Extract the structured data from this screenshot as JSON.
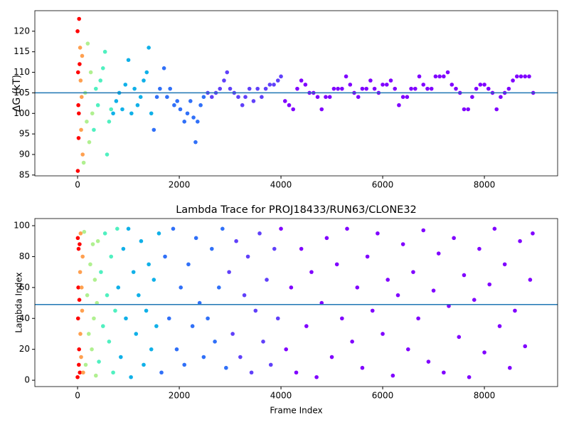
{
  "chart_data": [
    {
      "type": "scatter",
      "ylabel": "ΔG (kT)",
      "xlim": [
        -840,
        9440
      ],
      "ylim": [
        84.8,
        125
      ],
      "xticks": [
        0,
        2000,
        4000,
        6000,
        8000
      ],
      "yticks": [
        85,
        90,
        95,
        100,
        105,
        110,
        115,
        120
      ],
      "hline": 105,
      "hline_color": "#1f77b4",
      "series": [
        {
          "color": "#ff0000",
          "x": [
            0,
            5,
            10,
            15,
            20,
            25,
            30,
            40
          ],
          "y": [
            120,
            86,
            110,
            102,
            94,
            100,
            123,
            112
          ]
        },
        {
          "color": "#ffa050",
          "x": [
            50,
            60,
            70,
            80,
            90,
            100
          ],
          "y": [
            116,
            108,
            96,
            104,
            114,
            90
          ]
        },
        {
          "color": "#b0f090",
          "x": [
            120,
            150,
            180,
            200,
            230,
            260,
            290
          ],
          "y": [
            88,
            105,
            98,
            117,
            93,
            110,
            100
          ]
        },
        {
          "color": "#50f0c0",
          "x": [
            320,
            360,
            400,
            450,
            500,
            540,
            580,
            620,
            660
          ],
          "y": [
            96,
            106,
            102,
            108,
            111,
            115,
            90,
            98,
            101
          ]
        },
        {
          "color": "#10b0e8",
          "x": [
            700,
            760,
            820,
            880,
            940,
            1000,
            1060,
            1120,
            1180,
            1240,
            1300,
            1360,
            1400,
            1450
          ],
          "y": [
            100,
            103,
            105,
            101,
            107,
            113,
            100,
            106,
            102,
            104,
            108,
            110,
            116,
            100
          ]
        },
        {
          "color": "#3070f8",
          "x": [
            1500,
            1560,
            1620,
            1700,
            1760,
            1820,
            1900,
            1960,
            2020,
            2100,
            2160,
            2220,
            2280,
            2320,
            2360,
            2420,
            2480
          ],
          "y": [
            96,
            104,
            106,
            111,
            104,
            106,
            102,
            103,
            101,
            98,
            100,
            103,
            99,
            93,
            98,
            102,
            104
          ]
        },
        {
          "color": "#6040fa",
          "x": [
            2560,
            2640,
            2720,
            2800,
            2880,
            2940,
            3000,
            3080,
            3160,
            3240,
            3300,
            3380,
            3460,
            3540,
            3620,
            3700,
            3780,
            3860,
            3940,
            4000
          ],
          "y": [
            105,
            104,
            105,
            106,
            108,
            110,
            106,
            105,
            104,
            102,
            104,
            106,
            103,
            106,
            104,
            106,
            107,
            107,
            108,
            109
          ]
        },
        {
          "color": "#8000ff",
          "x": [
            4080,
            4160,
            4240,
            4320,
            4400,
            4480,
            4560,
            4640,
            4720,
            4800,
            4880,
            4960,
            5040,
            5120,
            5200,
            5280,
            5360,
            5440,
            5520,
            5600,
            5680,
            5760,
            5840,
            5920,
            6000,
            6080,
            6160,
            6240,
            6320,
            6400,
            6480,
            6560,
            6640,
            6720,
            6800,
            6880,
            6960,
            7040,
            7120,
            7200,
            7280,
            7360,
            7440,
            7520,
            7600,
            7680,
            7760,
            7840,
            7920,
            8000,
            8080,
            8160,
            8240,
            8320,
            8400,
            8480,
            8560,
            8640,
            8720,
            8800,
            8880,
            8960
          ],
          "y": [
            103,
            102,
            101,
            106,
            108,
            107,
            105,
            105,
            104,
            101,
            104,
            104,
            106,
            106,
            106,
            109,
            107,
            105,
            104,
            106,
            106,
            108,
            106,
            105,
            107,
            107,
            108,
            106,
            102,
            104,
            104,
            106,
            106,
            109,
            107,
            106,
            106,
            109,
            109,
            109,
            110,
            107,
            106,
            105,
            101,
            101,
            104,
            106,
            107,
            107,
            106,
            105,
            101,
            104,
            105,
            106,
            108,
            109,
            109,
            109,
            109,
            105
          ]
        }
      ]
    },
    {
      "type": "scatter",
      "title": "Lambda Trace for PROJ18433/RUN63/CLONE32",
      "xlabel": "Frame Index",
      "ylabel": "Lambda Index",
      "xlim": [
        -840,
        9440
      ],
      "ylim": [
        -4.1,
        104.6
      ],
      "xticks": [
        0,
        2000,
        4000,
        6000,
        8000
      ],
      "yticks": [
        0,
        20,
        40,
        60,
        80,
        100
      ],
      "hline": 49,
      "hline_color": "#1f77b4",
      "series": [
        {
          "color": "#ff0000",
          "x": [
            0,
            5,
            10,
            15,
            20,
            25,
            30,
            35,
            40,
            45
          ],
          "y": [
            2,
            92,
            40,
            60,
            85,
            10,
            20,
            52,
            88,
            5
          ]
        },
        {
          "color": "#ffa050",
          "x": [
            50,
            55,
            60,
            70,
            80,
            90,
            100,
            110
          ],
          "y": [
            70,
            30,
            95,
            15,
            60,
            45,
            80,
            5
          ]
        },
        {
          "color": "#b0f090",
          "x": [
            130,
            160,
            190,
            220,
            250,
            280,
            300,
            320,
            340,
            360,
            380,
            400
          ],
          "y": [
            96,
            10,
            55,
            30,
            75,
            20,
            88,
            40,
            65,
            3,
            50,
            90
          ]
        },
        {
          "color": "#50f0c0",
          "x": [
            420,
            460,
            500,
            540,
            580,
            620,
            660,
            700,
            740,
            780
          ],
          "y": [
            12,
            70,
            35,
            95,
            55,
            25,
            80,
            5,
            45,
            98
          ]
        },
        {
          "color": "#10b0e8",
          "x": [
            800,
            850,
            900,
            950,
            1000,
            1050,
            1100,
            1150,
            1200,
            1250,
            1300,
            1350,
            1400,
            1450,
            1500,
            1550,
            1600
          ],
          "y": [
            60,
            15,
            85,
            40,
            98,
            2,
            70,
            30,
            55,
            90,
            10,
            45,
            75,
            20,
            65,
            35,
            95
          ]
        },
        {
          "color": "#3070f8",
          "x": [
            1650,
            1720,
            1800,
            1880,
            1950,
            2030,
            2100,
            2180,
            2260,
            2330,
            2400,
            2480,
            2560,
            2640,
            2700,
            2780,
            2850,
            2920
          ],
          "y": [
            5,
            80,
            40,
            98,
            20,
            60,
            10,
            75,
            35,
            92,
            50,
            15,
            40,
            85,
            25,
            60,
            98,
            8
          ]
        },
        {
          "color": "#6040fa",
          "x": [
            2980,
            3050,
            3120,
            3200,
            3280,
            3350,
            3420,
            3500,
            3580,
            3650,
            3720,
            3800,
            3870,
            3940
          ],
          "y": [
            70,
            30,
            90,
            15,
            55,
            80,
            5,
            45,
            95,
            25,
            65,
            10,
            85,
            40
          ]
        },
        {
          "color": "#8000ff",
          "x": [
            4000,
            4100,
            4200,
            4300,
            4400,
            4500,
            4600,
            4700,
            4800,
            4900,
            5000,
            5100,
            5200,
            5300,
            5400,
            5500,
            5600,
            5700,
            5800,
            5900,
            6000,
            6100,
            6200,
            6300,
            6400,
            6500,
            6600,
            6700,
            6800,
            6900,
            7000,
            7100,
            7200,
            7300,
            7400,
            7500,
            7600,
            7700,
            7800,
            7900,
            8000,
            8100,
            8200,
            8300,
            8400,
            8500,
            8600,
            8700,
            8800,
            8900,
            8950
          ],
          "y": [
            98,
            20,
            60,
            5,
            85,
            35,
            70,
            2,
            50,
            92,
            15,
            75,
            40,
            98,
            25,
            60,
            8,
            80,
            45,
            95,
            30,
            65,
            3,
            55,
            88,
            20,
            70,
            40,
            97,
            12,
            58,
            82,
            5,
            48,
            92,
            28,
            68,
            2,
            52,
            85,
            18,
            62,
            98,
            35,
            75,
            8,
            45,
            90,
            22,
            65,
            95
          ]
        }
      ]
    }
  ]
}
